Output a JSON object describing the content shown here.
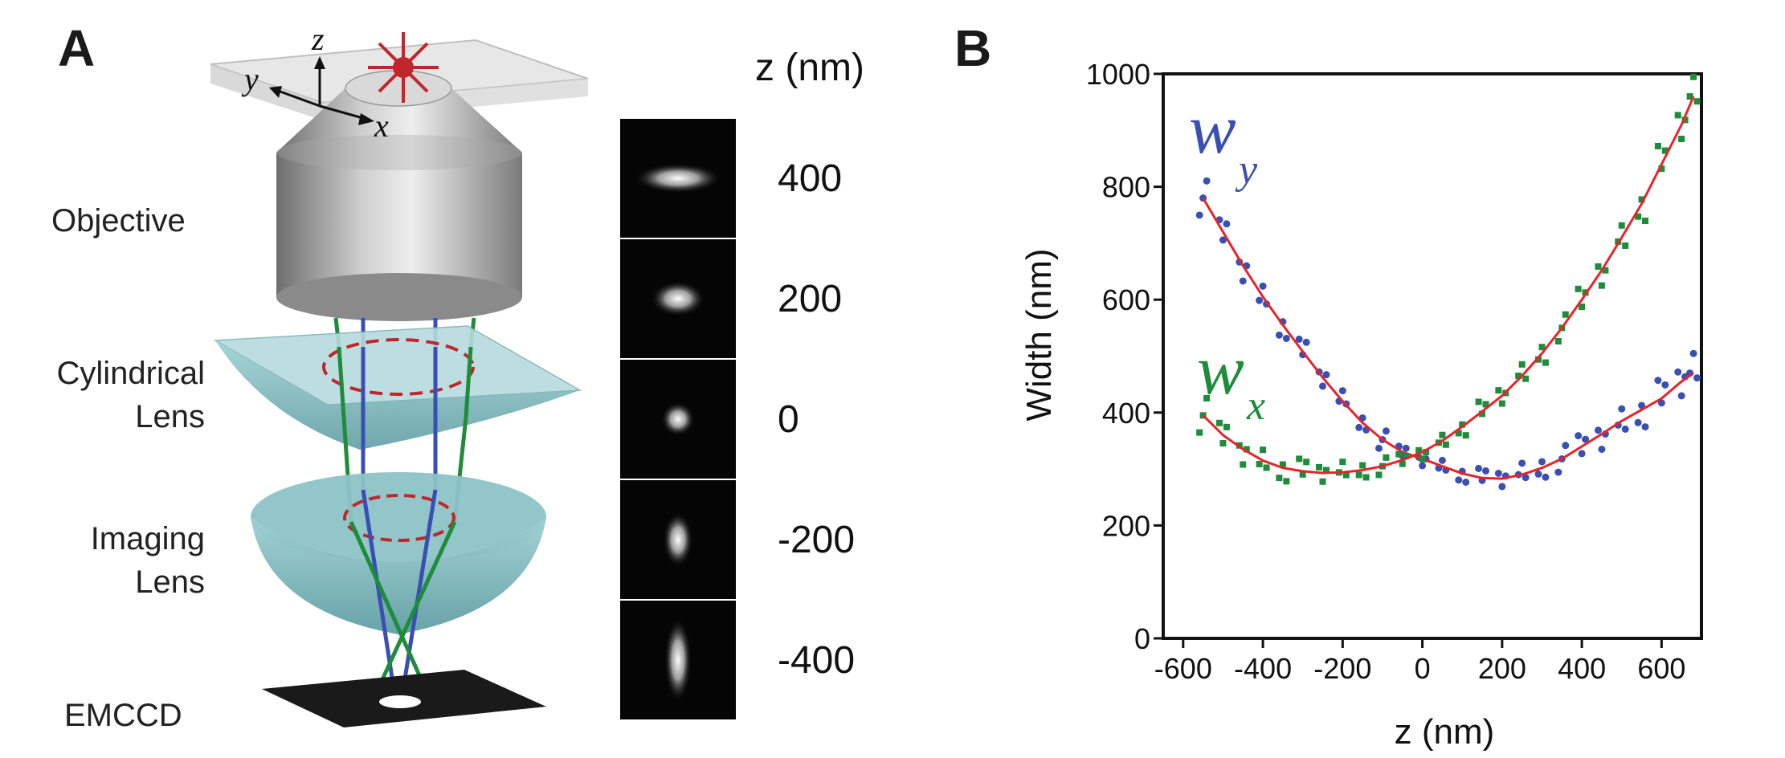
{
  "panels": {
    "a": "A",
    "b": "B"
  },
  "schematic": {
    "axes": {
      "x": "x",
      "y": "y",
      "z": "z"
    },
    "labels": {
      "objective": "Objective",
      "cyl_1": "Cylindrical",
      "cyl_2": "Lens",
      "img_1": "Imaging",
      "img_2": "Lens",
      "detector": "EMCCD"
    },
    "colors": {
      "green_ray": "#1e8c3a",
      "blue_ray": "#3a4fb4",
      "lens": "#7fbdc1",
      "focus_ring": "#c0272d",
      "emitter": "#c0272d"
    }
  },
  "psf_strip": {
    "header": "z (nm)",
    "frames": [
      {
        "z": "400",
        "wx": 1.6,
        "wy": 0.55
      },
      {
        "z": "200",
        "wx": 1.0,
        "wy": 0.65
      },
      {
        "z": "0",
        "wx": 0.62,
        "wy": 0.62
      },
      {
        "z": "-200",
        "wx": 0.55,
        "wy": 1.0
      },
      {
        "z": "-400",
        "wx": 0.5,
        "wy": 1.55
      }
    ]
  },
  "chart_data": {
    "type": "scatter",
    "xlabel": "z (nm)",
    "ylabel": "Width (nm)",
    "xlim": [
      -650,
      700
    ],
    "ylim": [
      0,
      1000
    ],
    "xticks": [
      -600,
      -400,
      -200,
      0,
      200,
      400,
      600
    ],
    "yticks": [
      0,
      200,
      400,
      600,
      800,
      1000
    ],
    "series": [
      {
        "name": "w_y",
        "label_main": "w",
        "label_sub": "y",
        "color": "#3a4fb4",
        "fit_color": "#e8232a",
        "points": [
          [
            -550,
            780
          ],
          [
            -500,
            720
          ],
          [
            -450,
            660
          ],
          [
            -400,
            605
          ],
          [
            -350,
            555
          ],
          [
            -300,
            508
          ],
          [
            -250,
            462
          ],
          [
            -200,
            420
          ],
          [
            -150,
            382
          ],
          [
            -100,
            352
          ],
          [
            -50,
            330
          ],
          [
            0,
            318
          ],
          [
            50,
            305
          ],
          [
            100,
            292
          ],
          [
            150,
            284
          ],
          [
            200,
            283
          ],
          [
            250,
            290
          ],
          [
            300,
            302
          ],
          [
            350,
            318
          ],
          [
            400,
            340
          ],
          [
            450,
            362
          ],
          [
            500,
            385
          ],
          [
            550,
            405
          ],
          [
            600,
            425
          ],
          [
            650,
            455
          ],
          [
            680,
            470
          ]
        ]
      },
      {
        "name": "w_x",
        "label_main": "w",
        "label_sub": "x",
        "color": "#1e8c3a",
        "fit_color": "#e8232a",
        "points": [
          [
            -550,
            395
          ],
          [
            -500,
            360
          ],
          [
            -450,
            335
          ],
          [
            -400,
            315
          ],
          [
            -350,
            302
          ],
          [
            -300,
            296
          ],
          [
            -250,
            293
          ],
          [
            -200,
            294
          ],
          [
            -150,
            298
          ],
          [
            -100,
            305
          ],
          [
            -50,
            316
          ],
          [
            0,
            330
          ],
          [
            50,
            350
          ],
          [
            100,
            375
          ],
          [
            150,
            402
          ],
          [
            200,
            430
          ],
          [
            250,
            465
          ],
          [
            300,
            505
          ],
          [
            350,
            550
          ],
          [
            400,
            600
          ],
          [
            450,
            652
          ],
          [
            500,
            710
          ],
          [
            550,
            770
          ],
          [
            600,
            840
          ],
          [
            650,
            910
          ],
          [
            680,
            960
          ]
        ]
      }
    ]
  }
}
